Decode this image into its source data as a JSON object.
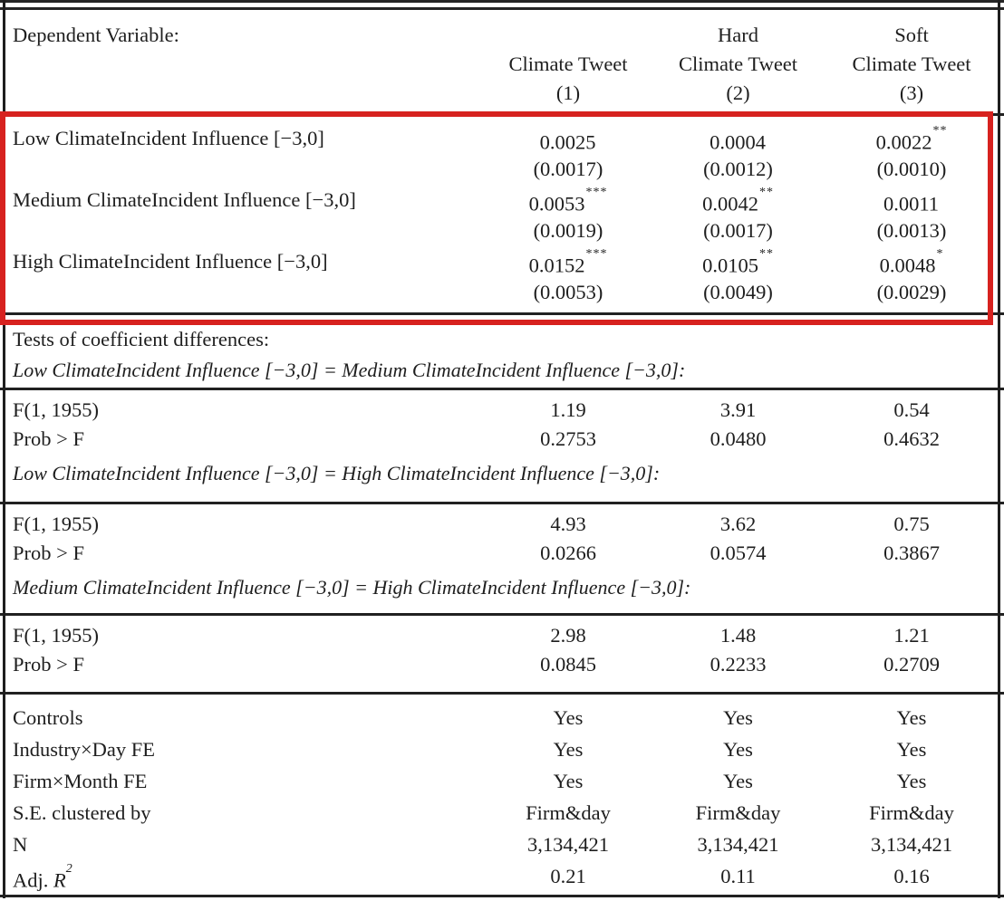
{
  "annotation": {
    "highlight_color": "#d7221f"
  },
  "header": {
    "dependent_variable_label": "Dependent Variable:",
    "columns": [
      {
        "prefix": "",
        "name": "Climate Tweet",
        "number": "(1)"
      },
      {
        "prefix": "Hard",
        "name": "Climate Tweet",
        "number": "(2)"
      },
      {
        "prefix": "Soft",
        "name": "Climate Tweet",
        "number": "(3)"
      }
    ]
  },
  "coefficients": {
    "rows": [
      {
        "label": "Low ClimateIncident Influence [−3,0]",
        "estimates": [
          {
            "value": "0.0025",
            "stars": ""
          },
          {
            "value": "0.0004",
            "stars": ""
          },
          {
            "value": "0.0022",
            "stars": "**"
          }
        ],
        "std_errors": [
          "(0.0017)",
          "(0.0012)",
          "(0.0010)"
        ]
      },
      {
        "label": "Medium ClimateIncident Influence [−3,0]",
        "estimates": [
          {
            "value": "0.0053",
            "stars": "***"
          },
          {
            "value": "0.0042",
            "stars": "**"
          },
          {
            "value": "0.0011",
            "stars": ""
          }
        ],
        "std_errors": [
          "(0.0019)",
          "(0.0017)",
          "(0.0013)"
        ]
      },
      {
        "label": "High ClimateIncident Influence [−3,0]",
        "estimates": [
          {
            "value": "0.0152",
            "stars": "***"
          },
          {
            "value": "0.0105",
            "stars": "**"
          },
          {
            "value": "0.0048",
            "stars": "*"
          }
        ],
        "std_errors": [
          "(0.0053)",
          "(0.0049)",
          "(0.0029)"
        ]
      }
    ]
  },
  "tests": {
    "section_title": "Tests of coefficient differences:",
    "blocks": [
      {
        "hypothesis": "Low ClimateIncident Influence [−3,0] = Medium ClimateIncident Influence [−3,0]:",
        "f_label": "F(1, 1955)",
        "f_values": [
          "1.19",
          "3.91",
          "0.54"
        ],
        "p_label": "Prob > F",
        "p_values": [
          "0.2753",
          "0.0480",
          "0.4632"
        ]
      },
      {
        "hypothesis": "Low ClimateIncident Influence [−3,0] = High ClimateIncident Influence [−3,0]:",
        "f_label": "F(1, 1955)",
        "f_values": [
          "4.93",
          "3.62",
          "0.75"
        ],
        "p_label": "Prob > F",
        "p_values": [
          "0.0266",
          "0.0574",
          "0.3867"
        ]
      },
      {
        "hypothesis": "Medium ClimateIncident Influence [−3,0] = High ClimateIncident Influence [−3,0]:",
        "f_label": "F(1, 1955)",
        "f_values": [
          "2.98",
          "1.48",
          "1.21"
        ],
        "p_label": "Prob > F",
        "p_values": [
          "0.0845",
          "0.2233",
          "0.2709"
        ]
      }
    ]
  },
  "specs": {
    "rows": [
      {
        "label": "Controls",
        "values": [
          "Yes",
          "Yes",
          "Yes"
        ]
      },
      {
        "label": "Industry×Day FE",
        "values": [
          "Yes",
          "Yes",
          "Yes"
        ]
      },
      {
        "label": "Firm×Month FE",
        "values": [
          "Yes",
          "Yes",
          "Yes"
        ]
      },
      {
        "label": "S.E. clustered by",
        "values": [
          "Firm&day",
          "Firm&day",
          "Firm&day"
        ]
      },
      {
        "label": "N",
        "values": [
          "3,134,421",
          "3,134,421",
          "3,134,421"
        ]
      }
    ],
    "adj_r2": {
      "prefix": "Adj. ",
      "symbol": "R",
      "exponent": "2",
      "values": [
        "0.21",
        "0.11",
        "0.16"
      ]
    }
  }
}
